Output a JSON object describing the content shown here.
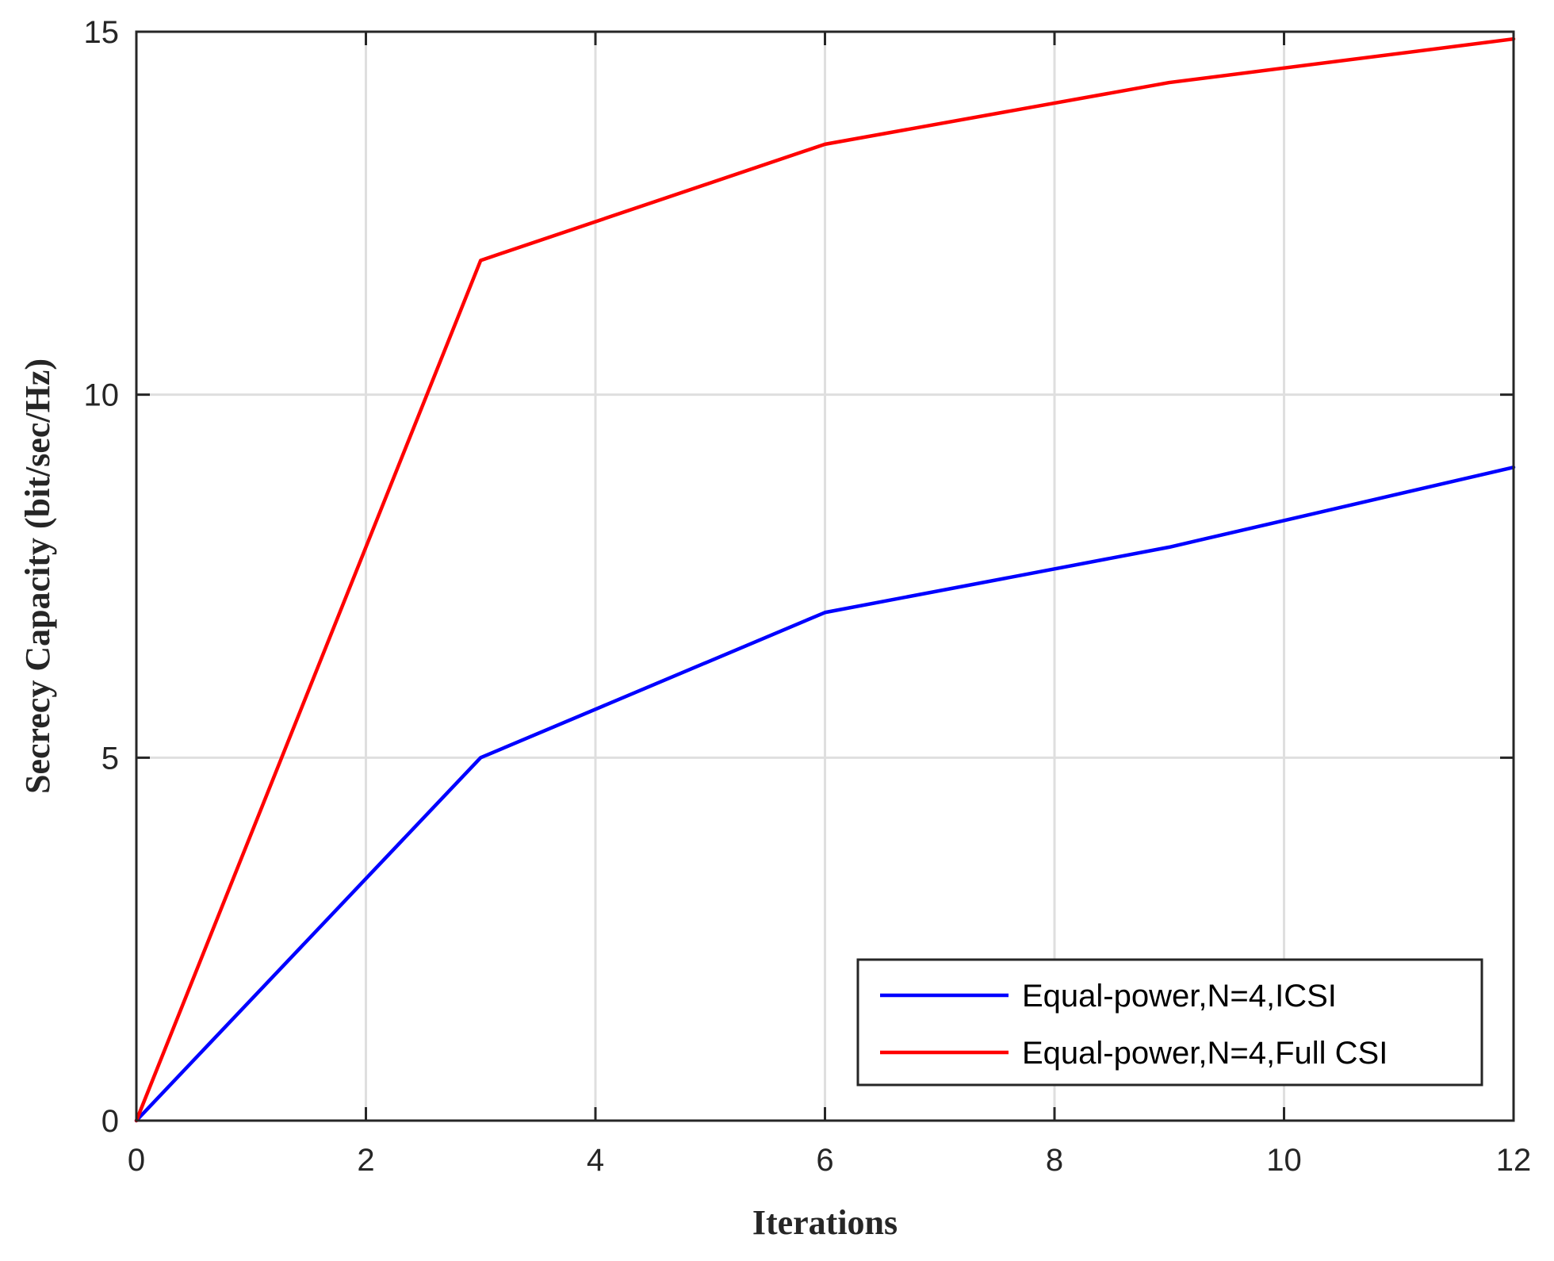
{
  "chart_data": {
    "type": "line",
    "xlabel": "Iterations",
    "ylabel": "Secrecy Capacity (bit/sec/Hz)",
    "xlim": [
      0,
      12
    ],
    "ylim": [
      0,
      15
    ],
    "xticks": [
      0,
      2,
      4,
      6,
      8,
      10,
      12
    ],
    "yticks": [
      0,
      5,
      10,
      15
    ],
    "grid": true,
    "legend_position": "lower-right",
    "series": [
      {
        "name": "Equal-power,N=4,ICSI",
        "color": "#0000ff",
        "x": [
          0,
          3,
          6,
          9,
          12
        ],
        "y": [
          0,
          5.0,
          7.0,
          7.9,
          9.0
        ]
      },
      {
        "name": "Equal-power,N=4,Full CSI",
        "color": "#ff0000",
        "x": [
          0,
          3,
          6,
          9,
          12
        ],
        "y": [
          0,
          11.85,
          13.45,
          14.3,
          14.9
        ]
      }
    ]
  }
}
